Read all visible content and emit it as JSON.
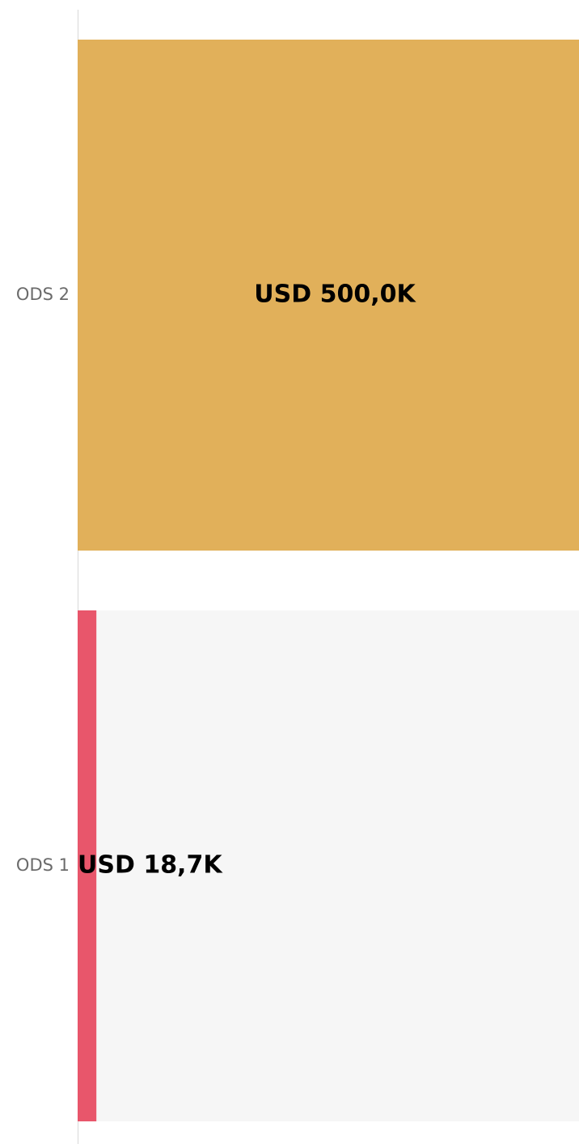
{
  "chart_data": {
    "type": "bar",
    "orientation": "horizontal",
    "categories": [
      "ODS 2",
      "ODS 1"
    ],
    "values": [
      500000,
      18700
    ],
    "value_labels": [
      "USD 500,0K",
      "USD 18,7K"
    ],
    "colors": [
      "#e1b05a",
      "#e8566b"
    ],
    "xlim": [
      0,
      500000
    ]
  }
}
